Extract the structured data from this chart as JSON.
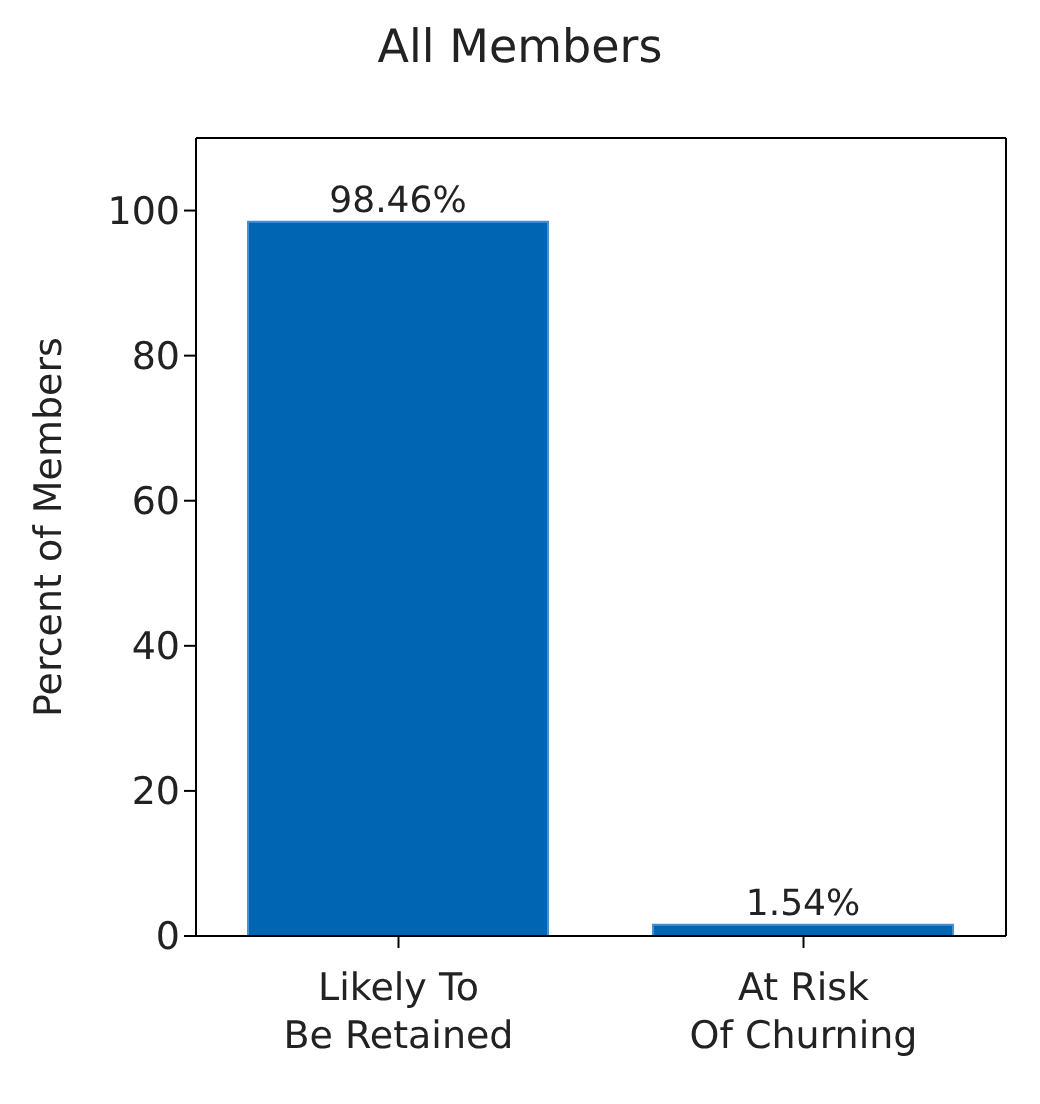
{
  "chart_data": {
    "type": "bar",
    "title": "All Members",
    "ylabel": "Percent of Members",
    "categories": [
      "Likely To\nBe Retained",
      "At Risk\nOf Churning"
    ],
    "values": [
      98.46,
      1.54
    ],
    "color": "#0066b3",
    "value_labels": [
      "98.46%",
      "1.54%"
    ],
    "ylim": [
      0,
      110
    ],
    "yticks": [
      0,
      20,
      40,
      60,
      80,
      100
    ]
  }
}
